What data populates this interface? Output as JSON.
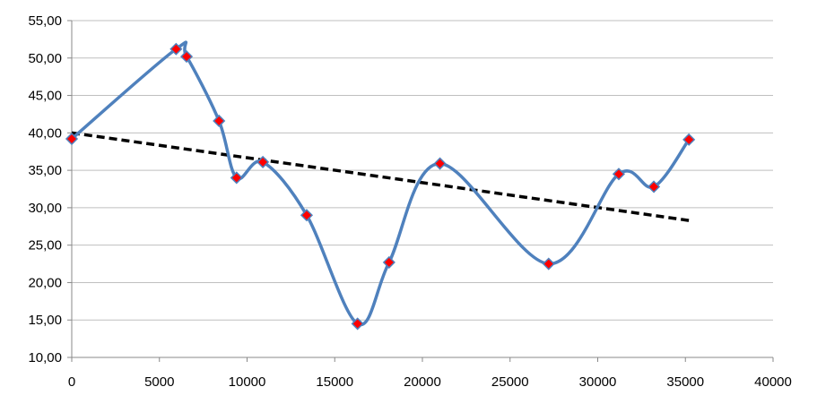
{
  "chart_data": {
    "type": "scatter",
    "title": "",
    "xlabel": "",
    "ylabel": "",
    "xlim": [
      0,
      40000
    ],
    "ylim": [
      10,
      55
    ],
    "x_ticks": [
      "0",
      "5000",
      "10000",
      "15000",
      "20000",
      "25000",
      "30000",
      "35000",
      "40000"
    ],
    "y_ticks": [
      "10,00",
      "15,00",
      "20,00",
      "25,00",
      "30,00",
      "35,00",
      "40,00",
      "45,00",
      "50,00",
      "55,00"
    ],
    "grid": "horizontal",
    "legend": "none",
    "series": [
      {
        "style": "smoothed line with diamond markers",
        "line_color": "#4f81bd",
        "marker_color": "#ff0000",
        "points": [
          {
            "x": 0,
            "y": 39.2
          },
          {
            "x": 5950,
            "y": 51.2
          },
          {
            "x": 6550,
            "y": 50.2
          },
          {
            "x": 8400,
            "y": 41.6
          },
          {
            "x": 9400,
            "y": 34.0
          },
          {
            "x": 10900,
            "y": 36.1
          },
          {
            "x": 13400,
            "y": 29.0
          },
          {
            "x": 16300,
            "y": 14.5
          },
          {
            "x": 18100,
            "y": 22.7
          },
          {
            "x": 21000,
            "y": 35.9
          },
          {
            "x": 27200,
            "y": 22.5
          },
          {
            "x": 31200,
            "y": 34.5
          },
          {
            "x": 33200,
            "y": 32.8
          },
          {
            "x": 35200,
            "y": 39.1
          }
        ]
      }
    ],
    "trendline": {
      "type": "linear",
      "style": "dashed",
      "color": "#000000",
      "x_range": [
        0,
        35200
      ],
      "start_y": 40.0,
      "end_y": 28.3
    }
  }
}
